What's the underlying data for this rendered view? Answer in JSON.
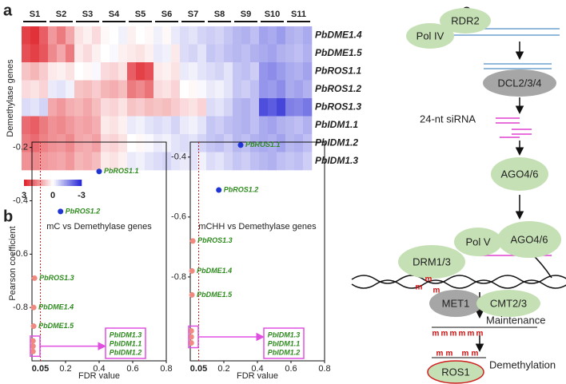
{
  "panel_labels": [
    "a",
    "b",
    "c"
  ],
  "chart_data": [
    {
      "type": "heatmap",
      "y_label": "Demethylase genes",
      "column_groups": [
        "S1",
        "S2",
        "S3",
        "S4",
        "S5",
        "S6",
        "S7",
        "S8",
        "S9",
        "S10",
        "S11"
      ],
      "rows": [
        "PbDME1.4",
        "PbDME1.5",
        "PbROS1.1",
        "PbROS1.2",
        "PbROS1.3",
        "PbIDM1.1",
        "PbIDM1.2",
        "PbIDM1.3"
      ],
      "values": [
        [
          2.6,
          2.8,
          2.2,
          1.4,
          1.8,
          1.2,
          0.4,
          0.2,
          0.5,
          0.1,
          0,
          -0.2,
          0.2,
          0,
          0.1,
          -0.2,
          0.1,
          -0.3,
          -0.5,
          -0.4,
          -0.6,
          -0.7,
          -0.6,
          -0.8,
          -1,
          -1.1,
          -0.9,
          -1.3,
          -1.2,
          -1.4,
          -1.1,
          -1,
          -1.2
        ],
        [
          2.4,
          2.6,
          2.3,
          1.6,
          1.2,
          1.8,
          0.3,
          0.5,
          0.2,
          0,
          -0.1,
          0.2,
          0.3,
          0.4,
          0.2,
          -0.3,
          -0.2,
          0.3,
          -0.5,
          -0.6,
          -0.4,
          -0.8,
          -0.7,
          -0.9,
          -1,
          -0.9,
          -1.1,
          -1.2,
          -1.3,
          -1.1,
          -1,
          -0.9,
          -1.1
        ],
        [
          0.8,
          1,
          0.7,
          0.3,
          0.2,
          0.4,
          0,
          0.1,
          -0.1,
          0.5,
          0.6,
          0.4,
          2.2,
          2.6,
          2.4,
          0.3,
          0.2,
          0.4,
          -0.3,
          -0.2,
          -0.4,
          -0.5,
          -0.6,
          -0.4,
          -0.8,
          -0.9,
          -0.7,
          -1.5,
          -1.6,
          -1.4,
          -1.2,
          -1.1,
          -1.3
        ],
        [
          0.5,
          0.4,
          0.6,
          -0.3,
          -0.4,
          -0.2,
          0.8,
          0.9,
          0.7,
          1,
          1.1,
          0.9,
          1.8,
          1.6,
          1.9,
          0.5,
          0.4,
          0.6,
          0,
          0.1,
          -0.1,
          -0.3,
          -0.2,
          -0.4,
          -0.8,
          -0.7,
          -0.9,
          -1.5,
          -1.4,
          -1.6,
          -1.2,
          -1.3,
          -1.1
        ],
        [
          -0.5,
          -0.4,
          -0.6,
          1.2,
          1.4,
          1.1,
          1,
          1.2,
          0.9,
          0.5,
          0.6,
          0.4,
          0.8,
          0.7,
          0.9,
          0.8,
          0.9,
          0.7,
          0.5,
          0.4,
          0.6,
          -0.5,
          -0.4,
          -0.6,
          -1,
          -1.1,
          -0.9,
          -2.5,
          -2.3,
          -2.6,
          -1.8,
          -1.7,
          -1.9
        ],
        [
          2,
          2.2,
          1.8,
          1.5,
          1.6,
          1.4,
          1.2,
          1.3,
          1.1,
          0.3,
          0.4,
          0.2,
          -0.3,
          -0.2,
          -0.4,
          -0.5,
          -0.4,
          -0.6,
          -0.3,
          -0.2,
          -0.4,
          -0.8,
          -0.7,
          -0.9,
          -1,
          -1.1,
          -0.9,
          -1.2,
          -1.3,
          -1.1,
          -1,
          -0.9,
          -1.1
        ],
        [
          1.8,
          2,
          1.7,
          1.5,
          1.4,
          1.6,
          1.2,
          1.1,
          1.3,
          0.5,
          0.6,
          0.4,
          0,
          0.1,
          -0.1,
          -0.3,
          -0.2,
          -0.4,
          -0.5,
          -0.4,
          -0.6,
          -0.8,
          -0.9,
          -0.7,
          -1,
          -0.9,
          -1.1,
          -1.2,
          -1.1,
          -1.3,
          -1,
          -1.1,
          -0.9
        ],
        [
          1.5,
          1.6,
          1.4,
          1.3,
          1.2,
          1.4,
          1,
          1.1,
          0.9,
          0.3,
          0.4,
          0.2,
          -0.3,
          -0.2,
          -0.4,
          -0.5,
          -0.6,
          -0.4,
          -0.3,
          -0.4,
          -0.2,
          -0.5,
          -0.4,
          -0.6,
          -0.8,
          -0.7,
          -0.9,
          -1,
          -1.1,
          -0.9,
          -0.8,
          -0.9,
          -0.7
        ]
      ],
      "zlim": [
        -3,
        3
      ],
      "colorscale": [
        "#2a2ad6",
        "#ffffff",
        "#e0232b"
      ],
      "colorbar_ticks": [
        3,
        0,
        -3
      ]
    },
    {
      "type": "scatter",
      "title": "mC vs Demethylase genes",
      "x_label": "FDR value",
      "y_label": "Pearson coefficient",
      "x": [
        0.4,
        0.17,
        0.015,
        0.01,
        0.01,
        0.006,
        0.006,
        0.006
      ],
      "values": [
        -0.29,
        -0.44,
        -0.69,
        -0.8,
        -0.87,
        -0.925,
        -0.945,
        -0.965
      ],
      "point_labels": [
        "PbROS1.1",
        "PbROS1.2",
        "PbROS1.3",
        "PbDME1.4",
        "PbDME1.5",
        "PbIDM1.3",
        "PbIDM1.1",
        "PbIDM1.2"
      ],
      "colors": [
        "#1f35d4",
        "#1f35d4",
        "#f08a80",
        "#f08a80",
        "#f08a80",
        "#f08a80",
        "#f08a80",
        "#f08a80"
      ],
      "boxed": [
        false,
        false,
        false,
        false,
        false,
        true,
        true,
        true
      ],
      "threshold": 0.05,
      "xlim": [
        0,
        0.8
      ],
      "xticks": [
        0.2,
        0.4,
        0.6,
        0.8
      ],
      "ylim": [
        -1,
        -0.18
      ],
      "yticks": [
        -0.2,
        -0.4,
        -0.6,
        -0.8
      ]
    },
    {
      "type": "scatter",
      "title": "mCHH vs Demethylase genes",
      "x_label": "FDR value",
      "y_label": null,
      "x": [
        0.3,
        0.17,
        0.015,
        0.01,
        0.01,
        0.006,
        0.006,
        0.006
      ],
      "values": [
        -0.36,
        -0.51,
        -0.68,
        -0.78,
        -0.86,
        -0.98,
        -1.0,
        -1.02
      ],
      "point_labels": [
        "PbROS1.1",
        "PbROS1.2",
        "PbROS1.3",
        "PbDME1.4",
        "PbDME1.5",
        "PbIDM1.3",
        "PbIDM1.1",
        "PbIDM1.2"
      ],
      "colors": [
        "#1f35d4",
        "#1f35d4",
        "#f08a80",
        "#f08a80",
        "#f08a80",
        "#f08a80",
        "#f08a80",
        "#f08a80"
      ],
      "boxed": [
        false,
        false,
        false,
        false,
        false,
        true,
        true,
        true
      ],
      "threshold": 0.05,
      "xlim": [
        0,
        0.8
      ],
      "xticks": [
        0.2,
        0.4,
        0.6,
        0.8
      ],
      "ylim": [
        -1.08,
        -0.35
      ],
      "yticks": [
        -0.4,
        -0.6,
        -0.8
      ]
    }
  ],
  "diagram": {
    "pol_iv": "Pol IV",
    "rdr2": "RDR2",
    "dcl": "DCL2/3/4",
    "sirna": "24-nt siRNA",
    "ago_1": "AGO4/6",
    "ago_2": "AGO4/6",
    "pol_v": "Pol V",
    "drm": "DRM1/3",
    "met1": "MET1",
    "cmt": "CMT2/3",
    "maintenance": "Maintenance",
    "ros1": "ROS1",
    "demethylation": "Demethylation",
    "methyl_mark": "m"
  }
}
